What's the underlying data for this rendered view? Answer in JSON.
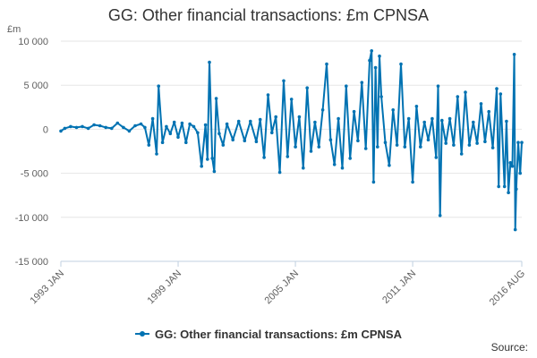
{
  "chart_data": {
    "type": "line",
    "title": "GG: Other financial transactions: £m CPNSA",
    "ylabel": "£m",
    "ylim": [
      -15000,
      10000
    ],
    "yticks": [
      10000,
      5000,
      0,
      -5000,
      -10000,
      -15000
    ],
    "ytick_labels": [
      "10 000",
      "5 000",
      "0",
      "-5 000",
      "-10 000",
      "-15 000"
    ],
    "xticks": [
      {
        "label": "1993 JAN",
        "year": 1993.0
      },
      {
        "label": "1999 JAN",
        "year": 1999.0
      },
      {
        "label": "2005 JAN",
        "year": 2005.0
      },
      {
        "label": "2011 JAN",
        "year": 2011.0
      },
      {
        "label": "2016 AUG",
        "year": 2016.583
      }
    ],
    "xlim": [
      1993.0,
      2016.583
    ],
    "grid": "horizontal",
    "legend_position": "bottom",
    "source_label": "Source:",
    "series": [
      {
        "name": "GG: Other financial transactions: £m CPNSA",
        "color": "#0072b2",
        "points": [
          [
            1993.0,
            -200
          ],
          [
            1993.2,
            100
          ],
          [
            1993.5,
            300
          ],
          [
            1993.8,
            200
          ],
          [
            1994.1,
            300
          ],
          [
            1994.4,
            100
          ],
          [
            1994.7,
            500
          ],
          [
            1995.0,
            400
          ],
          [
            1995.3,
            200
          ],
          [
            1995.6,
            100
          ],
          [
            1995.9,
            700
          ],
          [
            1996.2,
            200
          ],
          [
            1996.5,
            -200
          ],
          [
            1996.8,
            400
          ],
          [
            1997.1,
            600
          ],
          [
            1997.3,
            200
          ],
          [
            1997.5,
            -1800
          ],
          [
            1997.7,
            1200
          ],
          [
            1997.9,
            -2800
          ],
          [
            1998.0,
            4900
          ],
          [
            1998.2,
            -1500
          ],
          [
            1998.4,
            300
          ],
          [
            1998.6,
            -500
          ],
          [
            1998.8,
            800
          ],
          [
            1999.0,
            -900
          ],
          [
            1999.2,
            700
          ],
          [
            1999.4,
            -1500
          ],
          [
            1999.6,
            600
          ],
          [
            1999.8,
            300
          ],
          [
            2000.0,
            -400
          ],
          [
            2000.2,
            -4200
          ],
          [
            2000.4,
            500
          ],
          [
            2000.5,
            -3400
          ],
          [
            2000.6,
            7600
          ],
          [
            2000.75,
            -3300
          ],
          [
            2000.85,
            -4800
          ],
          [
            2000.95,
            3500
          ],
          [
            2001.1,
            -500
          ],
          [
            2001.3,
            -1800
          ],
          [
            2001.5,
            600
          ],
          [
            2001.8,
            -1200
          ],
          [
            2002.1,
            900
          ],
          [
            2002.4,
            -1300
          ],
          [
            2002.7,
            900
          ],
          [
            2003.0,
            -1400
          ],
          [
            2003.2,
            1100
          ],
          [
            2003.4,
            -3200
          ],
          [
            2003.6,
            3900
          ],
          [
            2003.8,
            -400
          ],
          [
            2004.0,
            1400
          ],
          [
            2004.2,
            -4900
          ],
          [
            2004.4,
            5500
          ],
          [
            2004.6,
            -3100
          ],
          [
            2004.8,
            3400
          ],
          [
            2005.0,
            -2000
          ],
          [
            2005.2,
            1400
          ],
          [
            2005.4,
            -4400
          ],
          [
            2005.6,
            4700
          ],
          [
            2005.8,
            -2500
          ],
          [
            2006.0,
            800
          ],
          [
            2006.2,
            -2000
          ],
          [
            2006.4,
            2200
          ],
          [
            2006.6,
            7400
          ],
          [
            2006.8,
            -1200
          ],
          [
            2007.0,
            -4000
          ],
          [
            2007.2,
            1200
          ],
          [
            2007.4,
            -4400
          ],
          [
            2007.6,
            4900
          ],
          [
            2007.8,
            -3300
          ],
          [
            2008.0,
            2000
          ],
          [
            2008.2,
            -1300
          ],
          [
            2008.4,
            5300
          ],
          [
            2008.6,
            -2200
          ],
          [
            2008.8,
            7800
          ],
          [
            2008.9,
            8900
          ],
          [
            2009.0,
            -6000
          ],
          [
            2009.1,
            7000
          ],
          [
            2009.2,
            -2000
          ],
          [
            2009.3,
            8300
          ],
          [
            2009.4,
            3700
          ],
          [
            2009.6,
            -1500
          ],
          [
            2009.8,
            -4100
          ],
          [
            2010.0,
            2200
          ],
          [
            2010.2,
            -1800
          ],
          [
            2010.4,
            7400
          ],
          [
            2010.6,
            -2000
          ],
          [
            2010.8,
            1200
          ],
          [
            2011.0,
            -6000
          ],
          [
            2011.2,
            2600
          ],
          [
            2011.4,
            -2000
          ],
          [
            2011.6,
            800
          ],
          [
            2011.8,
            -1200
          ],
          [
            2012.0,
            1200
          ],
          [
            2012.2,
            -3200
          ],
          [
            2012.3,
            4900
          ],
          [
            2012.4,
            -9800
          ],
          [
            2012.5,
            1000
          ],
          [
            2012.7,
            -1600
          ],
          [
            2012.9,
            1200
          ],
          [
            2013.1,
            -1800
          ],
          [
            2013.3,
            3700
          ],
          [
            2013.5,
            -2800
          ],
          [
            2013.7,
            4200
          ],
          [
            2013.9,
            -1800
          ],
          [
            2014.1,
            800
          ],
          [
            2014.3,
            -1600
          ],
          [
            2014.5,
            2900
          ],
          [
            2014.7,
            -1400
          ],
          [
            2014.9,
            2000
          ],
          [
            2015.1,
            -2100
          ],
          [
            2015.3,
            4600
          ],
          [
            2015.4,
            -6500
          ],
          [
            2015.5,
            4000
          ],
          [
            2015.7,
            -6500
          ],
          [
            2015.8,
            900
          ],
          [
            2015.9,
            -7200
          ],
          [
            2016.0,
            -3800
          ],
          [
            2016.1,
            -4200
          ],
          [
            2016.2,
            8500
          ],
          [
            2016.25,
            -11400
          ],
          [
            2016.3,
            -6800
          ],
          [
            2016.4,
            -1500
          ],
          [
            2016.5,
            -5000
          ],
          [
            2016.583,
            -1500
          ]
        ]
      }
    ]
  }
}
